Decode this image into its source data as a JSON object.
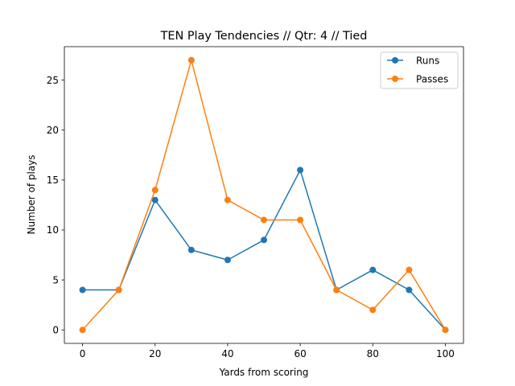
{
  "chart_data": {
    "type": "line",
    "title": "TEN Play Tendencies // Qtr: 4 // Tied",
    "xlabel": "Yards from scoring",
    "ylabel": "Number of plays",
    "x": [
      0,
      10,
      20,
      30,
      40,
      50,
      60,
      70,
      80,
      90,
      100
    ],
    "xlim": [
      -5,
      105
    ],
    "ylim": [
      -1.35,
      28.35
    ],
    "xticks": [
      0,
      20,
      40,
      60,
      80,
      100
    ],
    "yticks": [
      0,
      5,
      10,
      15,
      20,
      25
    ],
    "grid": false,
    "legend_position": "top-right",
    "series": [
      {
        "name": "Runs",
        "color": "#1f77b4",
        "marker": "circle",
        "values": [
          4,
          4,
          13,
          8,
          7,
          9,
          16,
          4,
          6,
          4,
          0
        ]
      },
      {
        "name": "Passes",
        "color": "#ff7f0e",
        "marker": "circle",
        "values": [
          0,
          4,
          14,
          27,
          13,
          11,
          11,
          4,
          2,
          6,
          0
        ]
      }
    ]
  }
}
